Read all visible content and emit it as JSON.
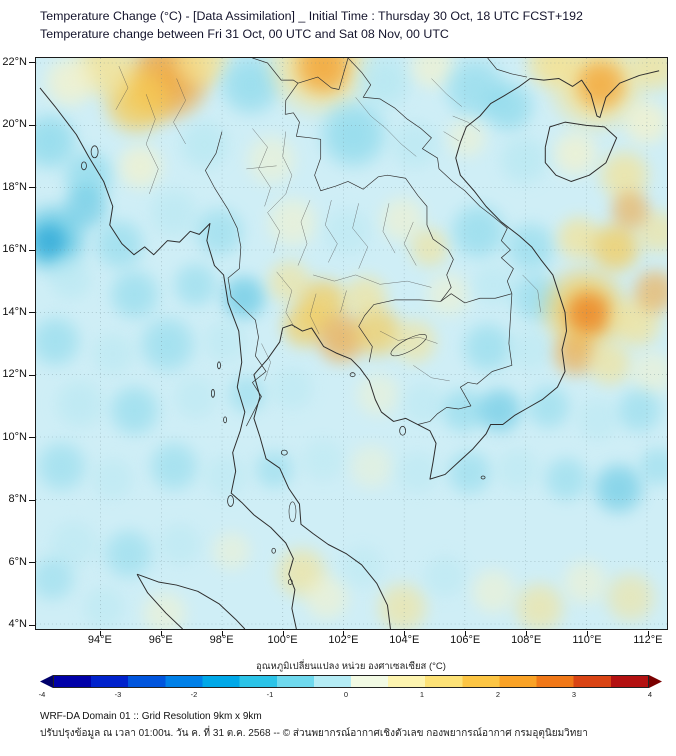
{
  "header": {
    "title": "Temperature Change (°C) - [Data Assimilation] _ Initial Time : Thursday 30 Oct, 18 UTC FCST+192",
    "subtitle": "Temperature change between Fri 31 Oct, 00 UTC and Sat 08 Nov, 00 UTC"
  },
  "map": {
    "y_ticks": [
      {
        "label": "22°N",
        "lat": 22
      },
      {
        "label": "20°N",
        "lat": 20
      },
      {
        "label": "18°N",
        "lat": 18
      },
      {
        "label": "16°N",
        "lat": 16
      },
      {
        "label": "14°N",
        "lat": 14
      },
      {
        "label": "12°N",
        "lat": 12
      },
      {
        "label": "10°N",
        "lat": 10
      },
      {
        "label": "8°N",
        "lat": 8
      },
      {
        "label": "6°N",
        "lat": 6
      },
      {
        "label": "4°N",
        "lat": 4
      }
    ],
    "x_ticks": [
      {
        "label": "94°E",
        "lon": 94
      },
      {
        "label": "96°E",
        "lon": 96
      },
      {
        "label": "98°E",
        "lon": 98
      },
      {
        "label": "100°E",
        "lon": 100
      },
      {
        "label": "102°E",
        "lon": 102
      },
      {
        "label": "104°E",
        "lon": 104
      },
      {
        "label": "106°E",
        "lon": 106
      },
      {
        "label": "108°E",
        "lon": 108
      },
      {
        "label": "110°E",
        "lon": 110
      },
      {
        "label": "112°E",
        "lon": 112
      }
    ],
    "field": {
      "base_color": "#cfeef6",
      "palette": {
        "y1": "#fbf3c4",
        "y2": "#f8e18a",
        "y3": "#f7c94e",
        "o1": "#f3a233",
        "o2": "#ec7d1d",
        "c1": "#b4e7f1",
        "c2": "#84d7ea",
        "c3": "#54c2e0",
        "b1": "#2fa9d8"
      },
      "blobs": [
        [
          96.2,
          21.5,
          1.6,
          "o1",
          0.9
        ],
        [
          95.2,
          20.8,
          1.3,
          "y3",
          0.85
        ],
        [
          94.2,
          21.9,
          1.2,
          "y2",
          0.8
        ],
        [
          93.0,
          21.4,
          1.0,
          "y1",
          0.7
        ],
        [
          97.3,
          22.1,
          1.1,
          "y2",
          0.8
        ],
        [
          98.9,
          21.3,
          1.2,
          "c2",
          0.7
        ],
        [
          101.2,
          22.0,
          1.9,
          "y2",
          0.85
        ],
        [
          101.3,
          21.9,
          1.1,
          "o1",
          0.85
        ],
        [
          103.3,
          21.4,
          1.1,
          "c1",
          0.8
        ],
        [
          104.9,
          21.9,
          0.9,
          "y1",
          0.6
        ],
        [
          106.3,
          21.2,
          1.2,
          "c2",
          0.65
        ],
        [
          107.4,
          20.6,
          1.0,
          "c2",
          0.7
        ],
        [
          108.8,
          22.0,
          1.0,
          "y2",
          0.8
        ],
        [
          110.3,
          21.4,
          1.8,
          "y2",
          0.85
        ],
        [
          110.4,
          21.3,
          1.0,
          "o1",
          0.8
        ],
        [
          112.2,
          21.9,
          1.0,
          "y2",
          0.7
        ],
        [
          111.9,
          20.1,
          0.9,
          "y1",
          0.7
        ],
        [
          92.3,
          19.5,
          1.1,
          "c2",
          0.75
        ],
        [
          93.6,
          18.4,
          1.0,
          "c2",
          0.7
        ],
        [
          95.3,
          18.7,
          0.9,
          "y1",
          0.65
        ],
        [
          97.4,
          19.4,
          1.0,
          "c1",
          0.7
        ],
        [
          99.6,
          18.9,
          1.0,
          "y1",
          0.5
        ],
        [
          102.3,
          19.7,
          1.3,
          "c2",
          0.75
        ],
        [
          104.3,
          19.4,
          1.0,
          "c1",
          0.6
        ],
        [
          106.0,
          19.6,
          0.8,
          "y1",
          0.5
        ],
        [
          107.9,
          18.9,
          1.0,
          "c1",
          0.7
        ],
        [
          109.6,
          19.1,
          0.9,
          "y1",
          0.65
        ],
        [
          111.2,
          18.4,
          1.0,
          "y2",
          0.7
        ],
        [
          92.4,
          16.4,
          1.3,
          "c3",
          0.8
        ],
        [
          92.3,
          16.3,
          0.7,
          "b1",
          0.8
        ],
        [
          93.5,
          17.4,
          0.9,
          "c3",
          0.6
        ],
        [
          94.6,
          16.2,
          1.0,
          "c2",
          0.6
        ],
        [
          96.4,
          17.2,
          1.0,
          "c1",
          0.6
        ],
        [
          97.9,
          16.6,
          1.0,
          "c2",
          0.55
        ],
        [
          100.3,
          16.9,
          1.0,
          "y1",
          0.55
        ],
        [
          102.1,
          16.6,
          1.0,
          "c1",
          0.5
        ],
        [
          103.9,
          17.0,
          0.9,
          "y1",
          0.55
        ],
        [
          104.8,
          16.1,
          0.8,
          "y2",
          0.6
        ],
        [
          106.4,
          16.6,
          1.1,
          "c2",
          0.65
        ],
        [
          108.1,
          16.1,
          1.0,
          "c2",
          0.6
        ],
        [
          109.7,
          16.4,
          0.9,
          "y2",
          0.7
        ],
        [
          110.9,
          16.1,
          1.0,
          "y3",
          0.75
        ],
        [
          112.3,
          16.6,
          0.9,
          "y2",
          0.6
        ],
        [
          111.4,
          17.3,
          0.8,
          "o1",
          0.6
        ],
        [
          93.0,
          15.1,
          0.9,
          "c1",
          0.6
        ],
        [
          95.1,
          14.6,
          1.0,
          "c2",
          0.6
        ],
        [
          97.1,
          14.9,
          0.9,
          "c2",
          0.55
        ],
        [
          98.7,
          14.5,
          0.9,
          "c3",
          0.65
        ],
        [
          100.2,
          15.0,
          0.9,
          "y2",
          0.6
        ],
        [
          101.3,
          14.3,
          1.0,
          "y3",
          0.75
        ],
        [
          102.7,
          14.5,
          0.9,
          "y2",
          0.65
        ],
        [
          105.4,
          14.6,
          0.9,
          "y1",
          0.5
        ],
        [
          106.9,
          14.9,
          0.9,
          "c1",
          0.55
        ],
        [
          108.3,
          14.5,
          1.0,
          "c2",
          0.6
        ],
        [
          109.9,
          14.1,
          1.6,
          "y3",
          0.8
        ],
        [
          110.0,
          14.0,
          0.9,
          "o2",
          0.8
        ],
        [
          111.6,
          13.7,
          1.0,
          "y2",
          0.7
        ],
        [
          112.2,
          14.7,
          0.9,
          "o1",
          0.6
        ],
        [
          92.5,
          13.1,
          1.0,
          "c2",
          0.6
        ],
        [
          94.4,
          12.7,
          0.9,
          "c1",
          0.55
        ],
        [
          96.2,
          13.0,
          1.1,
          "c2",
          0.6
        ],
        [
          98.1,
          13.1,
          0.9,
          "c1",
          0.5
        ],
        [
          100.7,
          13.6,
          0.9,
          "y3",
          0.7
        ],
        [
          101.9,
          13.2,
          1.0,
          "o1",
          0.7
        ],
        [
          103.1,
          13.4,
          1.0,
          "y3",
          0.7
        ],
        [
          104.3,
          13.1,
          0.9,
          "y2",
          0.6
        ],
        [
          106.7,
          12.9,
          1.0,
          "c2",
          0.6
        ],
        [
          108.1,
          12.8,
          0.9,
          "c1",
          0.5
        ],
        [
          109.6,
          12.7,
          0.9,
          "o1",
          0.65
        ],
        [
          110.7,
          12.4,
          0.9,
          "y2",
          0.65
        ],
        [
          112.1,
          12.1,
          0.9,
          "y1",
          0.5
        ],
        [
          93.3,
          11.1,
          1.0,
          "c1",
          0.6
        ],
        [
          95.1,
          10.9,
          1.0,
          "c2",
          0.6
        ],
        [
          97.1,
          11.3,
          0.9,
          "c1",
          0.5
        ],
        [
          98.8,
          11.4,
          0.8,
          "c2",
          0.5
        ],
        [
          100.3,
          11.6,
          0.9,
          "c1",
          0.5
        ],
        [
          103.1,
          11.4,
          0.9,
          "y1",
          0.45
        ],
        [
          104.6,
          11.1,
          0.9,
          "c1",
          0.5
        ],
        [
          105.9,
          10.9,
          0.9,
          "c2",
          0.6
        ],
        [
          107.1,
          10.9,
          0.9,
          "c3",
          0.6
        ],
        [
          108.7,
          11.0,
          0.9,
          "c2",
          0.55
        ],
        [
          110.3,
          10.6,
          0.9,
          "c1",
          0.5
        ],
        [
          111.7,
          10.9,
          0.9,
          "c2",
          0.55
        ],
        [
          92.7,
          9.1,
          1.0,
          "c2",
          0.55
        ],
        [
          94.4,
          8.7,
          0.9,
          "c1",
          0.5
        ],
        [
          96.4,
          9.1,
          1.0,
          "c2",
          0.55
        ],
        [
          98.1,
          8.8,
          0.9,
          "c1",
          0.5
        ],
        [
          99.7,
          9.0,
          0.8,
          "c2",
          0.5
        ],
        [
          101.3,
          9.3,
          0.9,
          "c1",
          0.45
        ],
        [
          102.9,
          9.1,
          0.9,
          "y1",
          0.4
        ],
        [
          104.4,
          8.9,
          0.9,
          "c1",
          0.5
        ],
        [
          106.1,
          8.9,
          0.9,
          "c2",
          0.55
        ],
        [
          107.7,
          9.0,
          0.9,
          "c1",
          0.5
        ],
        [
          109.3,
          8.7,
          0.9,
          "c2",
          0.55
        ],
        [
          111.0,
          8.4,
          1.0,
          "c3",
          0.6
        ],
        [
          112.3,
          9.1,
          0.8,
          "c2",
          0.5
        ],
        [
          93.1,
          6.6,
          1.0,
          "c1",
          0.5
        ],
        [
          94.9,
          6.3,
          1.0,
          "c2",
          0.55
        ],
        [
          96.6,
          6.6,
          0.9,
          "c1",
          0.5
        ],
        [
          98.3,
          6.4,
          0.8,
          "y1",
          0.45
        ],
        [
          100.6,
          5.7,
          1.0,
          "y2",
          0.65
        ],
        [
          101.4,
          4.9,
          0.9,
          "y1",
          0.55
        ],
        [
          102.6,
          5.9,
          0.9,
          "c1",
          0.45
        ],
        [
          103.9,
          4.6,
          1.0,
          "y2",
          0.6
        ],
        [
          105.3,
          5.6,
          0.9,
          "c1",
          0.5
        ],
        [
          106.9,
          5.1,
          0.9,
          "y1",
          0.5
        ],
        [
          108.4,
          4.6,
          1.0,
          "y2",
          0.6
        ],
        [
          109.9,
          5.4,
          0.9,
          "y1",
          0.5
        ],
        [
          111.4,
          4.9,
          1.0,
          "y2",
          0.55
        ],
        [
          96.1,
          4.4,
          0.9,
          "y1",
          0.5
        ],
        [
          94.1,
          4.6,
          0.9,
          "c1",
          0.5
        ],
        [
          92.4,
          5.5,
          0.9,
          "c2",
          0.5
        ]
      ]
    }
  },
  "colorbar": {
    "label": "อุณหภูมิเปลี่ยนแปลง หน่วย องศาเซลเซียส (°C)",
    "ticks": [
      "-4",
      "-3",
      "-2",
      "-1",
      "0",
      "1",
      "2",
      "3",
      "4"
    ],
    "segments": [
      "#0000a8",
      "#0022cc",
      "#0055dd",
      "#0080e8",
      "#00a8e8",
      "#2cc4e8",
      "#6fd9ee",
      "#b5ecf5",
      "#f2fae4",
      "#fdf4b0",
      "#fde277",
      "#fcc544",
      "#f9a226",
      "#f07818",
      "#d94414",
      "#b31111"
    ],
    "arrow_left": "#00006b",
    "arrow_right": "#7a0000"
  },
  "footer": {
    "line1": "WRF-DA Domain 01 :: Grid Resolution 9km x 9km",
    "line2": "ปรับปรุงข้อมูล ณ เวลา 01:00น. วัน ค. ที่ 31 ต.ค. 2568 -- © ส่วนพยากรณ์อากาศเชิงตัวเลข กองพยากรณ์อากาศ กรมอุตุนิยมวิทยา"
  }
}
